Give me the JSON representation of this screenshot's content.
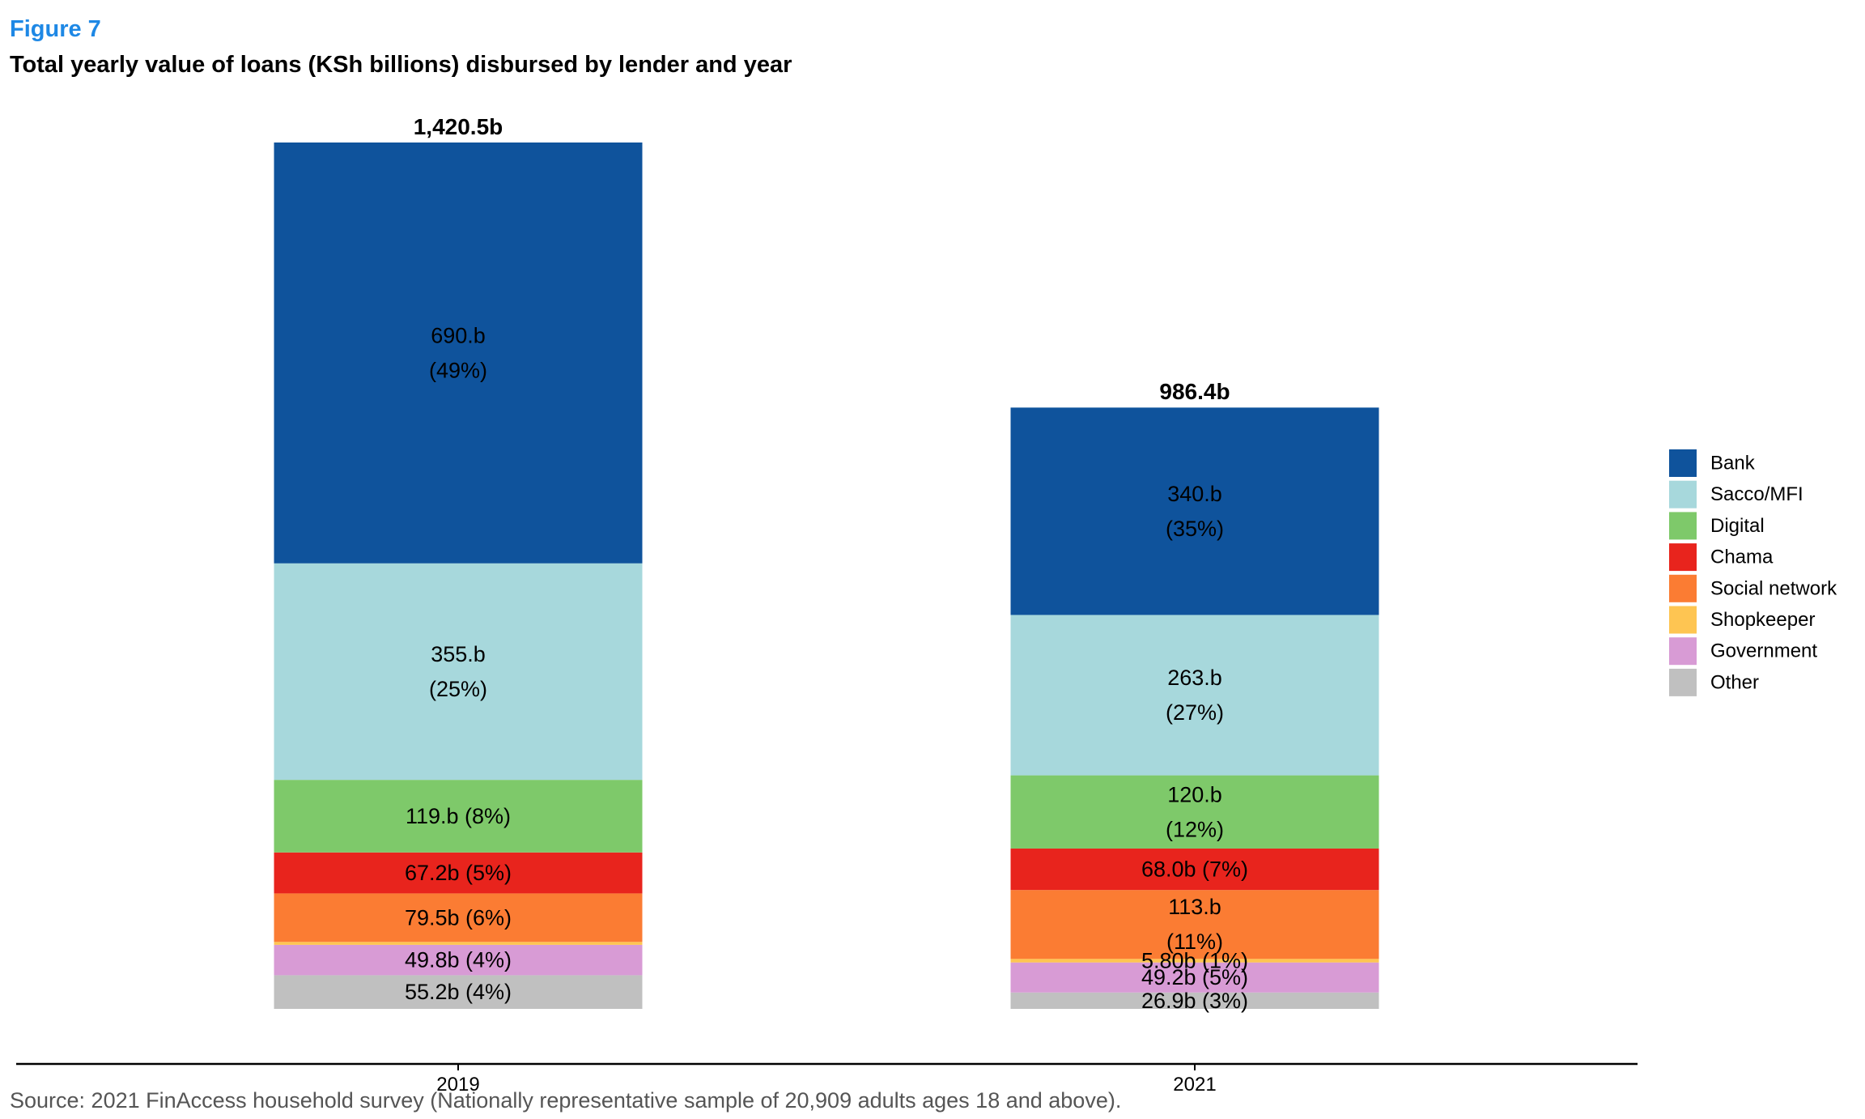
{
  "header": {
    "figure_label": "Figure 7",
    "title": "Total yearly value of loans (KSh billions) disbursed by lender and year"
  },
  "footer": {
    "source": "Source: 2021 FinAccess household survey (Nationally representative sample of 20,909 adults ages 18 and above)."
  },
  "chart_data": {
    "type": "bar",
    "stacked": true,
    "title": "Total yearly value of loans (KSh billions) disbursed by lender and year",
    "xlabel": "",
    "ylabel": "",
    "unit": "KSh billions",
    "categories": [
      "2019",
      "2021"
    ],
    "totals": [
      1420.5,
      986.4
    ],
    "total_labels": [
      "1,420.5b",
      "986.4b"
    ],
    "legend_position": "right",
    "grid": false,
    "series": [
      {
        "name": "Bank",
        "color": "#0f539c",
        "values": [
          690,
          340
        ],
        "labels": [
          [
            "690.b",
            "(49%)"
          ],
          [
            "340.b",
            "(35%)"
          ]
        ]
      },
      {
        "name": "Sacco/MFI",
        "color": "#a7d8dc",
        "values": [
          355,
          263
        ],
        "labels": [
          [
            "355.b",
            "(25%)"
          ],
          [
            "263.b",
            "(27%)"
          ]
        ]
      },
      {
        "name": "Digital",
        "color": "#7ec96a",
        "values": [
          119,
          120
        ],
        "labels": [
          [
            "119.b (8%)"
          ],
          [
            "120.b",
            "(12%)"
          ]
        ]
      },
      {
        "name": "Chama",
        "color": "#e8241d",
        "values": [
          67.2,
          68.0
        ],
        "labels": [
          [
            "67.2b (5%)"
          ],
          [
            "68.0b (7%)"
          ]
        ]
      },
      {
        "name": "Social network",
        "color": "#fb7c33",
        "values": [
          79.5,
          113
        ],
        "labels": [
          [
            "79.5b (6%)"
          ],
          [
            "113.b",
            "(11%)"
          ]
        ]
      },
      {
        "name": "Shopkeeper",
        "color": "#fec552",
        "values": [
          4.8,
          5.8
        ],
        "labels": [
          [],
          [
            "5.80b (1%)"
          ]
        ]
      },
      {
        "name": "Government",
        "color": "#d89bd5",
        "values": [
          49.8,
          49.2
        ],
        "labels": [
          [
            "49.8b (4%)"
          ],
          [
            "49.2b (5%)"
          ]
        ]
      },
      {
        "name": "Other",
        "color": "#c0c0c0",
        "values": [
          55.2,
          26.9
        ],
        "labels": [
          [
            "55.2b (4%)"
          ],
          [
            "26.9b (3%)"
          ]
        ]
      }
    ]
  }
}
